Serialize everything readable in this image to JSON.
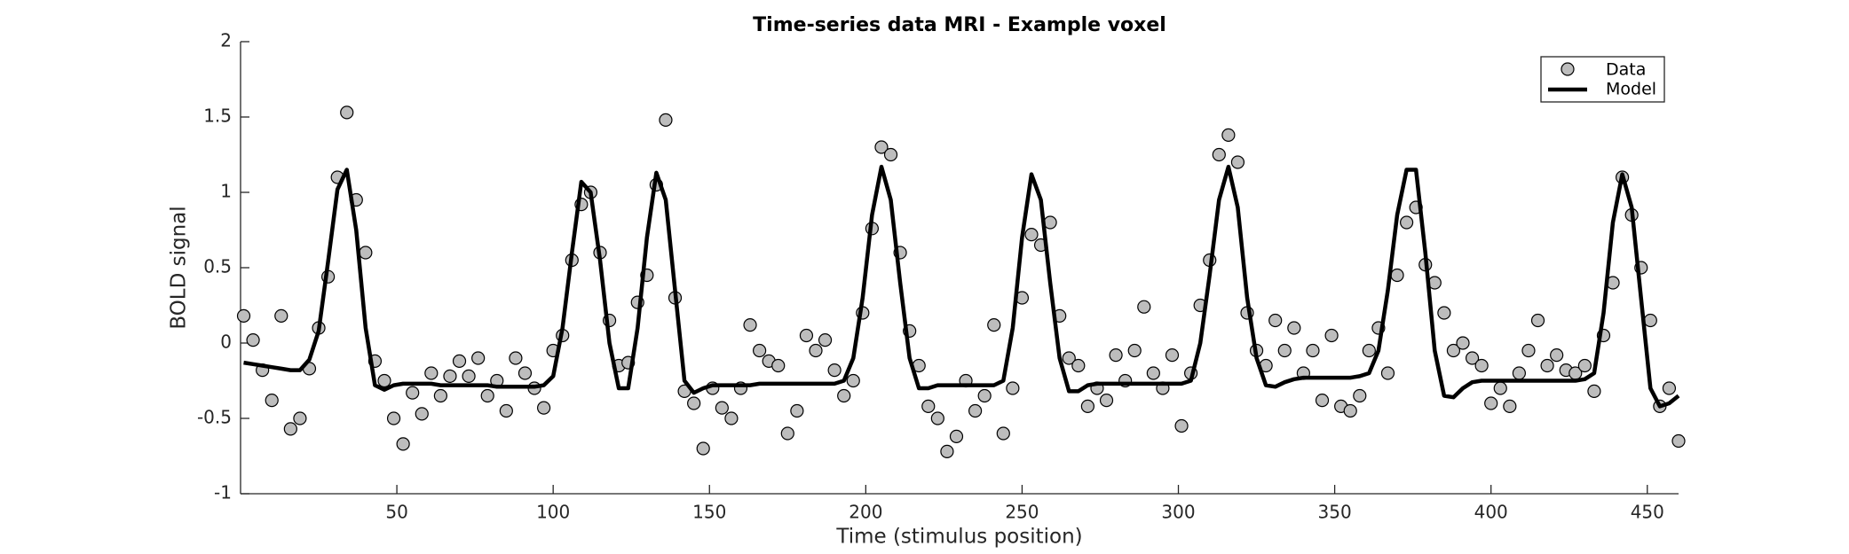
{
  "chart_data": {
    "type": "scatter-line",
    "title": "Time-series data MRI - Example voxel",
    "xlabel": "Time (stimulus position)",
    "ylabel": "BOLD signal",
    "xlim": [
      0,
      460
    ],
    "ylim": [
      -1,
      2
    ],
    "xticks": [
      50,
      100,
      150,
      200,
      250,
      300,
      350,
      400,
      450
    ],
    "yticks": [
      -1,
      -0.5,
      0,
      0.5,
      1,
      1.5,
      2
    ],
    "legend": "upper right",
    "x": [
      1,
      4,
      7,
      10,
      13,
      16,
      19,
      22,
      25,
      28,
      31,
      34,
      37,
      40,
      43,
      46,
      49,
      52,
      55,
      58,
      61,
      64,
      67,
      70,
      73,
      76,
      79,
      82,
      85,
      88,
      91,
      94,
      97,
      100,
      103,
      106,
      109,
      112,
      115,
      118,
      121,
      124,
      127,
      130,
      133,
      136,
      139,
      142,
      145,
      148,
      151,
      154,
      157,
      160,
      163,
      166,
      169,
      172,
      175,
      178,
      181,
      184,
      187,
      190,
      193,
      196,
      199,
      202,
      205,
      208,
      211,
      214,
      217,
      220,
      223,
      226,
      229,
      232,
      235,
      238,
      241,
      244,
      247,
      250,
      253,
      256,
      259,
      262,
      265,
      268,
      271,
      274,
      277,
      280,
      283,
      286,
      289,
      292,
      295,
      298,
      301,
      304,
      307,
      310,
      313,
      316,
      319,
      322,
      325,
      328,
      331,
      334,
      337,
      340,
      343,
      346,
      349,
      352,
      355,
      358,
      361,
      364,
      367,
      370,
      373,
      376,
      379,
      382,
      385,
      388,
      391,
      394,
      397,
      400,
      403,
      406,
      409,
      412,
      415,
      418,
      421,
      424,
      427,
      430,
      433,
      436,
      439,
      442,
      445,
      448,
      451,
      454,
      457,
      460
    ],
    "series": [
      {
        "name": "Data",
        "color": "#bdbdbd",
        "values": [
          0.18,
          0.02,
          -0.18,
          -0.38,
          0.18,
          -0.57,
          -0.5,
          -0.17,
          0.1,
          0.44,
          1.1,
          1.53,
          0.95,
          0.6,
          -0.12,
          -0.25,
          -0.5,
          -0.67,
          -0.33,
          -0.47,
          -0.2,
          -0.35,
          -0.22,
          -0.12,
          -0.22,
          -0.1,
          -0.35,
          -0.25,
          -0.45,
          -0.1,
          -0.2,
          -0.3,
          -0.43,
          -0.05,
          0.05,
          0.55,
          0.92,
          1.0,
          0.6,
          0.15,
          -0.15,
          -0.13,
          0.27,
          0.45,
          1.05,
          1.48,
          0.3,
          -0.32,
          -0.4,
          -0.7,
          -0.3,
          -0.43,
          -0.5,
          -0.3,
          0.12,
          -0.05,
          -0.12,
          -0.15,
          -0.6,
          -0.45,
          0.05,
          -0.05,
          0.02,
          -0.18,
          -0.35,
          -0.25,
          0.2,
          0.76,
          1.3,
          1.25,
          0.6,
          0.08,
          -0.15,
          -0.42,
          -0.5,
          -0.72,
          -0.62,
          -0.25,
          -0.45,
          -0.35,
          0.12,
          -0.6,
          -0.3,
          0.3,
          0.72,
          0.65,
          0.8,
          0.18,
          -0.1,
          -0.15,
          -0.42,
          -0.3,
          -0.38,
          -0.08,
          -0.25,
          -0.05,
          0.24,
          -0.2,
          -0.3,
          -0.08,
          -0.55,
          -0.2,
          0.25,
          0.55,
          1.25,
          1.38,
          1.2,
          0.2,
          -0.05,
          -0.15,
          0.15,
          -0.05,
          0.1,
          -0.2,
          -0.05,
          -0.38,
          0.05,
          -0.42,
          -0.45,
          -0.35,
          -0.05,
          0.1,
          -0.2,
          0.45,
          0.8,
          0.9,
          0.52,
          0.4,
          0.2,
          -0.05,
          0.0,
          -0.1,
          -0.15,
          -0.4,
          -0.3,
          -0.42,
          -0.2,
          -0.05,
          0.15,
          -0.15,
          -0.08,
          -0.18,
          -0.2,
          -0.15,
          -0.32,
          0.05,
          0.4,
          1.1,
          0.85,
          0.5,
          0.15,
          -0.42,
          -0.3,
          -0.65
        ]
      },
      {
        "name": "Model",
        "color": "#000000",
        "values": [
          -0.13,
          -0.14,
          -0.15,
          -0.16,
          -0.17,
          -0.18,
          -0.18,
          -0.11,
          0.08,
          0.54,
          1.02,
          1.15,
          0.75,
          0.1,
          -0.28,
          -0.31,
          -0.28,
          -0.27,
          -0.27,
          -0.27,
          -0.27,
          -0.28,
          -0.28,
          -0.28,
          -0.28,
          -0.28,
          -0.28,
          -0.29,
          -0.29,
          -0.29,
          -0.29,
          -0.29,
          -0.28,
          -0.22,
          0.1,
          0.6,
          1.07,
          1.0,
          0.55,
          0.0,
          -0.3,
          -0.3,
          0.1,
          0.7,
          1.13,
          0.95,
          0.35,
          -0.25,
          -0.33,
          -0.3,
          -0.28,
          -0.28,
          -0.28,
          -0.28,
          -0.28,
          -0.27,
          -0.27,
          -0.27,
          -0.27,
          -0.27,
          -0.27,
          -0.27,
          -0.27,
          -0.27,
          -0.25,
          -0.1,
          0.3,
          0.85,
          1.17,
          0.95,
          0.4,
          -0.1,
          -0.3,
          -0.3,
          -0.28,
          -0.28,
          -0.28,
          -0.28,
          -0.28,
          -0.28,
          -0.28,
          -0.25,
          0.1,
          0.7,
          1.12,
          0.95,
          0.4,
          -0.1,
          -0.32,
          -0.32,
          -0.28,
          -0.27,
          -0.27,
          -0.27,
          -0.27,
          -0.27,
          -0.27,
          -0.27,
          -0.27,
          -0.27,
          -0.27,
          -0.25,
          0.0,
          0.45,
          0.95,
          1.17,
          0.9,
          0.3,
          -0.1,
          -0.28,
          -0.29,
          -0.26,
          -0.24,
          -0.23,
          -0.23,
          -0.23,
          -0.23,
          -0.23,
          -0.23,
          -0.22,
          -0.2,
          -0.05,
          0.35,
          0.85,
          1.15,
          1.15,
          0.6,
          -0.05,
          -0.35,
          -0.36,
          -0.3,
          -0.26,
          -0.25,
          -0.25,
          -0.25,
          -0.25,
          -0.25,
          -0.25,
          -0.25,
          -0.25,
          -0.25,
          -0.25,
          -0.25,
          -0.24,
          -0.2,
          0.2,
          0.8,
          1.12,
          0.9,
          0.3,
          -0.3,
          -0.42,
          -0.4,
          -0.35
        ]
      }
    ]
  }
}
